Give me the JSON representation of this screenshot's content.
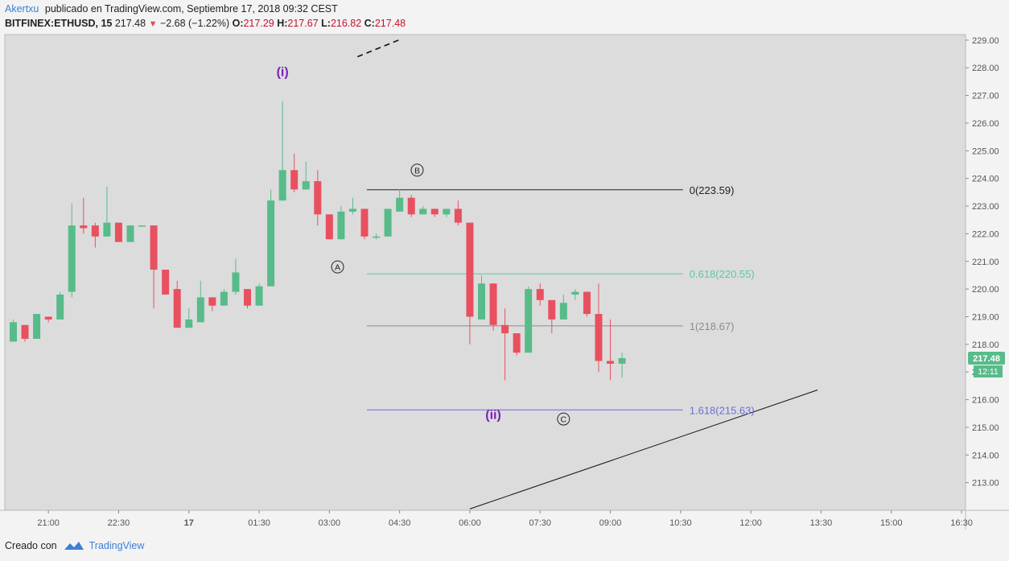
{
  "header": {
    "author": "Akertxu",
    "published": "publicado en TradingView.com, Septiembre 17, 2018 09:32 CEST",
    "symbol": "BITFINEX:ETHUSD, 15",
    "last": "217.48",
    "change": "−2.68 (−1.22%)",
    "o_label": "O:",
    "o_value": "217.29",
    "h_label": "H:",
    "h_value": "217.67",
    "l_label": "L:",
    "l_value": "216.82",
    "c_label": "C:",
    "c_value": "217.48"
  },
  "footer": {
    "created_with": "Creado con",
    "brand": "TradingView"
  },
  "colors": {
    "up": "#58bb8a",
    "down": "#e9505f",
    "fib_0": "#222222",
    "fib_618": "#5cc8a4",
    "fib_1": "#8d8d8d",
    "fib_1618": "#6b6fd6",
    "wave_label": "#7a22b8",
    "badge_price": "#58bb8a"
  },
  "chart_data": {
    "type": "candlestick",
    "ylim": [
      212,
      229.2
    ],
    "y_ticks": [
      "213.00",
      "214.00",
      "215.00",
      "216.00",
      "217.00",
      "218.00",
      "219.00",
      "220.00",
      "221.00",
      "222.00",
      "223.00",
      "224.00",
      "225.00",
      "226.00",
      "227.00",
      "228.00",
      "229.00"
    ],
    "x_ticks": [
      {
        "label": "21:00",
        "t": 3
      },
      {
        "label": "22:30",
        "t": 9
      },
      {
        "label": "17",
        "t": 15
      },
      {
        "label": "01:30",
        "t": 21
      },
      {
        "label": "03:00",
        "t": 27
      },
      {
        "label": "04:30",
        "t": 33
      },
      {
        "label": "06:00",
        "t": 39
      },
      {
        "label": "07:30",
        "t": 45
      },
      {
        "label": "09:00",
        "t": 51
      },
      {
        "label": "10:30",
        "t": 57
      },
      {
        "label": "12:00",
        "t": 63
      },
      {
        "label": "13:30",
        "t": 69
      },
      {
        "label": "15:00",
        "t": 75
      },
      {
        "label": "16:30",
        "t": 81
      }
    ],
    "candles": [
      {
        "t": 0,
        "o": 218.1,
        "h": 218.9,
        "l": 218.1,
        "c": 218.8
      },
      {
        "t": 1,
        "o": 218.7,
        "h": 218.7,
        "l": 218.1,
        "c": 218.2
      },
      {
        "t": 2,
        "o": 218.2,
        "h": 219.1,
        "l": 218.2,
        "c": 219.1
      },
      {
        "t": 3,
        "o": 219.0,
        "h": 219.0,
        "l": 218.8,
        "c": 218.9
      },
      {
        "t": 4,
        "o": 218.9,
        "h": 219.9,
        "l": 218.9,
        "c": 219.8
      },
      {
        "t": 5,
        "o": 219.9,
        "h": 223.1,
        "l": 219.7,
        "c": 222.3
      },
      {
        "t": 6,
        "o": 222.3,
        "h": 223.3,
        "l": 222.0,
        "c": 222.2
      },
      {
        "t": 7,
        "o": 222.3,
        "h": 222.4,
        "l": 221.5,
        "c": 221.9
      },
      {
        "t": 8,
        "o": 221.9,
        "h": 223.7,
        "l": 221.9,
        "c": 222.4
      },
      {
        "t": 9,
        "o": 222.4,
        "h": 222.4,
        "l": 221.7,
        "c": 221.7
      },
      {
        "t": 10,
        "o": 221.7,
        "h": 222.3,
        "l": 221.7,
        "c": 222.3
      },
      {
        "t": 11,
        "o": 222.3,
        "h": 222.3,
        "l": 222.3,
        "c": 222.3
      },
      {
        "t": 12,
        "o": 222.3,
        "h": 222.3,
        "l": 219.3,
        "c": 220.7
      },
      {
        "t": 13,
        "o": 220.7,
        "h": 220.7,
        "l": 219.8,
        "c": 219.8
      },
      {
        "t": 14,
        "o": 220.0,
        "h": 220.3,
        "l": 218.6,
        "c": 218.6
      },
      {
        "t": 15,
        "o": 218.6,
        "h": 219.3,
        "l": 218.6,
        "c": 218.9
      },
      {
        "t": 16,
        "o": 218.8,
        "h": 220.3,
        "l": 218.8,
        "c": 219.7
      },
      {
        "t": 17,
        "o": 219.7,
        "h": 219.7,
        "l": 219.2,
        "c": 219.4
      },
      {
        "t": 18,
        "o": 219.4,
        "h": 220.0,
        "l": 219.4,
        "c": 219.9
      },
      {
        "t": 19,
        "o": 219.9,
        "h": 221.1,
        "l": 219.8,
        "c": 220.6
      },
      {
        "t": 20,
        "o": 220.0,
        "h": 220.0,
        "l": 219.3,
        "c": 219.4
      },
      {
        "t": 21,
        "o": 219.4,
        "h": 220.2,
        "l": 219.4,
        "c": 220.1
      },
      {
        "t": 22,
        "o": 220.1,
        "h": 223.6,
        "l": 220.1,
        "c": 223.2
      },
      {
        "t": 23,
        "o": 223.2,
        "h": 226.8,
        "l": 223.2,
        "c": 224.3
      },
      {
        "t": 24,
        "o": 224.3,
        "h": 224.9,
        "l": 223.5,
        "c": 223.6
      },
      {
        "t": 25,
        "o": 223.6,
        "h": 224.6,
        "l": 223.6,
        "c": 223.9
      },
      {
        "t": 26,
        "o": 223.9,
        "h": 224.3,
        "l": 222.3,
        "c": 222.7
      },
      {
        "t": 27,
        "o": 222.7,
        "h": 222.7,
        "l": 221.8,
        "c": 221.8
      },
      {
        "t": 28,
        "o": 221.8,
        "h": 223.0,
        "l": 221.8,
        "c": 222.8
      },
      {
        "t": 29,
        "o": 222.8,
        "h": 223.3,
        "l": 222.7,
        "c": 222.9
      },
      {
        "t": 30,
        "o": 222.9,
        "h": 222.9,
        "l": 221.8,
        "c": 221.9
      },
      {
        "t": 31,
        "o": 221.9,
        "h": 222.0,
        "l": 221.8,
        "c": 221.9
      },
      {
        "t": 32,
        "o": 221.9,
        "h": 222.9,
        "l": 221.9,
        "c": 222.9
      },
      {
        "t": 33,
        "o": 222.8,
        "h": 223.6,
        "l": 222.8,
        "c": 223.3
      },
      {
        "t": 34,
        "o": 223.3,
        "h": 223.4,
        "l": 222.6,
        "c": 222.7
      },
      {
        "t": 35,
        "o": 222.7,
        "h": 223.0,
        "l": 222.7,
        "c": 222.9
      },
      {
        "t": 36,
        "o": 222.9,
        "h": 222.9,
        "l": 222.6,
        "c": 222.7
      },
      {
        "t": 37,
        "o": 222.7,
        "h": 222.9,
        "l": 222.6,
        "c": 222.9
      },
      {
        "t": 38,
        "o": 222.9,
        "h": 223.2,
        "l": 222.3,
        "c": 222.4
      },
      {
        "t": 39,
        "o": 222.4,
        "h": 222.4,
        "l": 218.0,
        "c": 219.0
      },
      {
        "t": 40,
        "o": 218.9,
        "h": 220.5,
        "l": 218.9,
        "c": 220.2
      },
      {
        "t": 41,
        "o": 220.2,
        "h": 220.2,
        "l": 218.5,
        "c": 218.7
      },
      {
        "t": 42,
        "o": 218.7,
        "h": 219.3,
        "l": 216.7,
        "c": 218.4
      },
      {
        "t": 43,
        "o": 218.4,
        "h": 218.4,
        "l": 217.6,
        "c": 217.7
      },
      {
        "t": 44,
        "o": 217.7,
        "h": 220.1,
        "l": 217.7,
        "c": 220.0
      },
      {
        "t": 45,
        "o": 220.0,
        "h": 220.2,
        "l": 219.4,
        "c": 219.6
      },
      {
        "t": 46,
        "o": 219.6,
        "h": 219.6,
        "l": 218.4,
        "c": 218.9
      },
      {
        "t": 47,
        "o": 218.9,
        "h": 219.8,
        "l": 218.9,
        "c": 219.5
      },
      {
        "t": 48,
        "o": 219.8,
        "h": 220.0,
        "l": 219.6,
        "c": 219.9
      },
      {
        "t": 49,
        "o": 219.9,
        "h": 219.9,
        "l": 219.0,
        "c": 219.1
      },
      {
        "t": 50,
        "o": 219.1,
        "h": 220.2,
        "l": 217.0,
        "c": 217.4
      },
      {
        "t": 51,
        "o": 217.4,
        "h": 218.9,
        "l": 216.7,
        "c": 217.3
      },
      {
        "t": 52,
        "o": 217.3,
        "h": 217.7,
        "l": 216.8,
        "c": 217.5
      }
    ],
    "fib_levels": [
      {
        "label": "0(223.59)",
        "value": 223.59,
        "color": "#222222"
      },
      {
        "label": "0.618(220.55)",
        "value": 220.55,
        "color": "#5cc8a4"
      },
      {
        "label": "1(218.67)",
        "value": 218.67,
        "color": "#8d8d8d"
      },
      {
        "label": "1.618(215.63)",
        "value": 215.63,
        "color": "#6b6fd6"
      }
    ],
    "wave_labels": [
      {
        "text": "(i)",
        "t": 23,
        "y": 227.7,
        "color": "#7a22b8"
      },
      {
        "text": "(ii)",
        "t": 41,
        "y": 215.3,
        "color": "#7a22b8"
      }
    ],
    "circle_labels": [
      {
        "text": "A",
        "t": 27.7,
        "y": 220.8
      },
      {
        "text": "B",
        "t": 34.5,
        "y": 224.3
      },
      {
        "text": "C",
        "t": 47,
        "y": 215.3
      }
    ],
    "trendline": {
      "t0": 39,
      "y0": 212.05,
      "t1": 68.7,
      "y1": 216.35
    },
    "dashed_line": {
      "t0": 29.4,
      "y0": 228.4,
      "t1": 32.9,
      "y1": 229.0
    },
    "price_badge": "217.48",
    "timer_badge": "12:11"
  }
}
